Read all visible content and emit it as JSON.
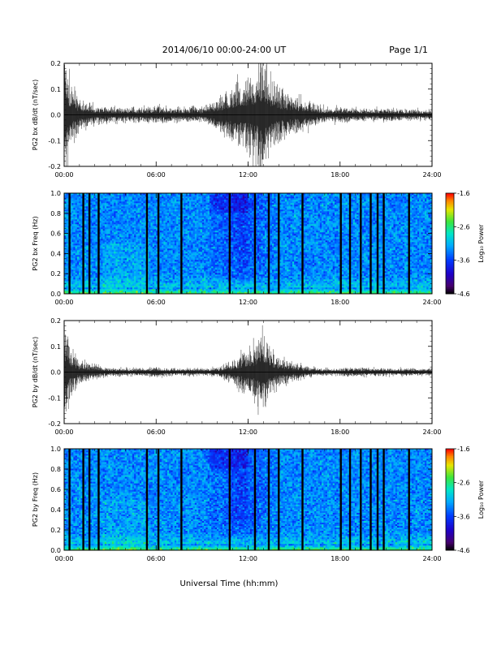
{
  "header": {
    "title": "2014/06/10   00:00-24:00 UT",
    "page": "Page 1/1"
  },
  "xlabel": "Universal Time (hh:mm)",
  "colorbar_label": "Log₁₀ Power",
  "colorbar_ticks": [
    "-1.6",
    "-2.6",
    "-3.6",
    "-4.6"
  ],
  "chart_data": [
    {
      "type": "line",
      "ylabel": "PG2 bx dB/dt (nT/sec)",
      "xlim": [
        0,
        24
      ],
      "ylim": [
        -0.2,
        0.2
      ],
      "x_ticks": [
        "00:00",
        "06:00",
        "12:00",
        "18:00",
        "24:00"
      ],
      "y_ticks": [
        "0.2",
        "0.1",
        "0.0",
        "-0.1",
        "-0.2"
      ],
      "series": [
        {
          "x": [
            0,
            0.3,
            1,
            2,
            3,
            4,
            5,
            6,
            7,
            8,
            9,
            10,
            11,
            11.5,
            12,
            12.5,
            13,
            13.5,
            14,
            15,
            16,
            16.5,
            17,
            18,
            19,
            20,
            21,
            22,
            23,
            24
          ],
          "y_envelope": [
            0.2,
            0.1,
            0.04,
            0.025,
            0.02,
            0.02,
            0.02,
            0.025,
            0.02,
            0.02,
            0.02,
            0.045,
            0.08,
            0.09,
            0.1,
            0.12,
            0.18,
            0.1,
            0.07,
            0.05,
            0.04,
            0.025,
            0.02,
            0.02,
            0.02,
            0.015,
            0.02,
            0.015,
            0.015,
            0.015
          ]
        }
      ]
    },
    {
      "type": "heatmap",
      "ylabel": "PG2 bx Freq (Hz)",
      "xlim": [
        0,
        24
      ],
      "ylim": [
        0.0,
        1.0
      ],
      "zlim": [
        -4.6,
        -1.6
      ],
      "x_ticks": [
        "00:00",
        "06:00",
        "12:00",
        "18:00",
        "24:00"
      ],
      "y_ticks": [
        "1.0",
        "0.8",
        "0.6",
        "0.4",
        "0.2",
        "0.0"
      ],
      "gaps_hours": [
        0.35,
        1.25,
        1.65,
        2.25,
        5.4,
        6.15,
        7.65,
        10.8,
        12.45,
        13.35,
        14.0,
        15.55,
        18.05,
        18.65,
        19.35,
        20.0,
        20.45,
        20.85,
        22.5
      ]
    },
    {
      "type": "line",
      "ylabel": "PG2 by dB/dt (nT/sec)",
      "xlim": [
        0,
        24
      ],
      "ylim": [
        -0.2,
        0.2
      ],
      "x_ticks": [
        "00:00",
        "06:00",
        "12:00",
        "18:00",
        "24:00"
      ],
      "y_ticks": [
        "0.2",
        "0.1",
        "0.0",
        "-0.1",
        "-0.2"
      ],
      "series": [
        {
          "x": [
            0,
            0.3,
            1,
            2,
            3,
            4,
            5,
            6,
            7,
            8,
            9,
            10,
            11,
            11.5,
            12,
            12.5,
            13,
            13.5,
            14,
            15,
            16,
            16.5,
            17,
            18,
            19,
            20,
            21,
            22,
            23,
            24
          ],
          "y_envelope": [
            0.14,
            0.08,
            0.03,
            0.02,
            0.012,
            0.01,
            0.01,
            0.015,
            0.01,
            0.01,
            0.01,
            0.012,
            0.03,
            0.05,
            0.06,
            0.08,
            0.12,
            0.06,
            0.04,
            0.025,
            0.015,
            0.012,
            0.01,
            0.01,
            0.012,
            0.012,
            0.01,
            0.01,
            0.01,
            0.01
          ]
        }
      ]
    },
    {
      "type": "heatmap",
      "ylabel": "PG2 by Freq (Hz)",
      "xlim": [
        0,
        24
      ],
      "ylim": [
        0.0,
        1.0
      ],
      "zlim": [
        -4.6,
        -1.6
      ],
      "x_ticks": [
        "00:00",
        "06:00",
        "12:00",
        "18:00",
        "24:00"
      ],
      "y_ticks": [
        "1.0",
        "0.8",
        "0.6",
        "0.4",
        "0.2",
        "0.0"
      ],
      "gaps_hours": [
        0.35,
        1.25,
        1.65,
        2.25,
        5.4,
        6.15,
        7.65,
        10.8,
        12.45,
        13.35,
        14.0,
        15.55,
        18.05,
        18.65,
        19.35,
        20.0,
        20.45,
        20.85,
        22.5
      ]
    }
  ]
}
